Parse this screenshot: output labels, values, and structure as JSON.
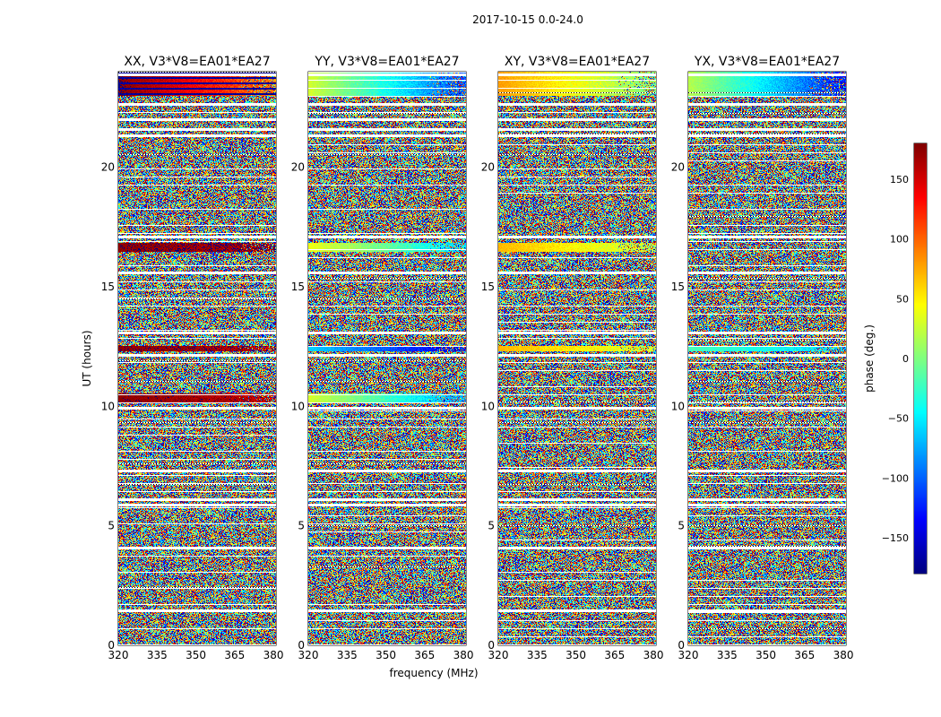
{
  "suptitle": "2017-10-15 0.0-24.0",
  "chart_data": {
    "type": "heatmap",
    "xlabel": "frequency (MHz)",
    "ylabel": "UT (hours)",
    "xlim": [
      320,
      381
    ],
    "ylim": [
      0,
      24
    ],
    "xticks": [
      "320",
      "335",
      "350",
      "365",
      "380"
    ],
    "xtick_values": [
      320,
      335,
      350,
      365,
      380
    ],
    "yticks": [
      "0",
      "5",
      "10",
      "15",
      "20"
    ],
    "ytick_values": [
      0,
      5,
      10,
      15,
      20
    ],
    "colormap": "jet",
    "panels": [
      {
        "title": "XX, V3*V8=EA01*EA27",
        "coherent_bands": [
          {
            "t0": 23.0,
            "t1": 24.0,
            "phase_start": 180,
            "phase_end": 90,
            "note": "mixed with -170 rows"
          },
          {
            "t0": 16.5,
            "t1": 16.85,
            "phase_start": 175,
            "phase_end": 170
          },
          {
            "t0": 12.3,
            "t1": 12.55,
            "phase_start": 175,
            "phase_end": 165
          },
          {
            "t0": 10.2,
            "t1": 10.55,
            "phase_start": 175,
            "phase_end": 160
          }
        ]
      },
      {
        "title": "YY, V3*V8=EA01*EA27",
        "coherent_bands": [
          {
            "t0": 23.0,
            "t1": 24.0,
            "phase_start": 30,
            "phase_end": -110
          },
          {
            "t0": 16.5,
            "t1": 16.85,
            "phase_start": 40,
            "phase_end": -60
          },
          {
            "t0": 12.3,
            "t1": 12.55,
            "phase_start": -60,
            "phase_end": -150
          },
          {
            "t0": 10.2,
            "t1": 10.55,
            "phase_start": 30,
            "phase_end": -80
          }
        ]
      },
      {
        "title": "XY, V3*V8=EA01*EA27",
        "coherent_bands": [
          {
            "t0": 23.0,
            "t1": 24.0,
            "phase_start": 80,
            "phase_end": 0
          },
          {
            "t0": 16.5,
            "t1": 16.85,
            "phase_start": 70,
            "phase_end": 20
          },
          {
            "t0": 12.3,
            "t1": 12.55,
            "phase_start": 70,
            "phase_end": 30
          }
        ]
      },
      {
        "title": "YX, V3*V8=EA01*EA27",
        "coherent_bands": [
          {
            "t0": 23.0,
            "t1": 24.0,
            "phase_start": 20,
            "phase_end": -130
          },
          {
            "t0": 12.3,
            "t1": 12.55,
            "phase_start": -20,
            "phase_end": -60
          }
        ]
      }
    ],
    "flagged_hours": [
      0.0,
      1.45,
      4.1,
      5.9,
      6.1,
      7.3,
      9.95,
      12.15,
      13.1,
      15.6,
      17.1,
      21.35,
      21.6,
      22.0,
      22.65,
      23.9
    ],
    "colorbar": {
      "label": "phase (deg.)",
      "range": [
        -180,
        180
      ],
      "ticks": [
        "150",
        "100",
        "50",
        "0",
        "−50",
        "−100",
        "−150"
      ],
      "tick_values": [
        150,
        100,
        50,
        0,
        -50,
        -100,
        -150
      ]
    }
  }
}
